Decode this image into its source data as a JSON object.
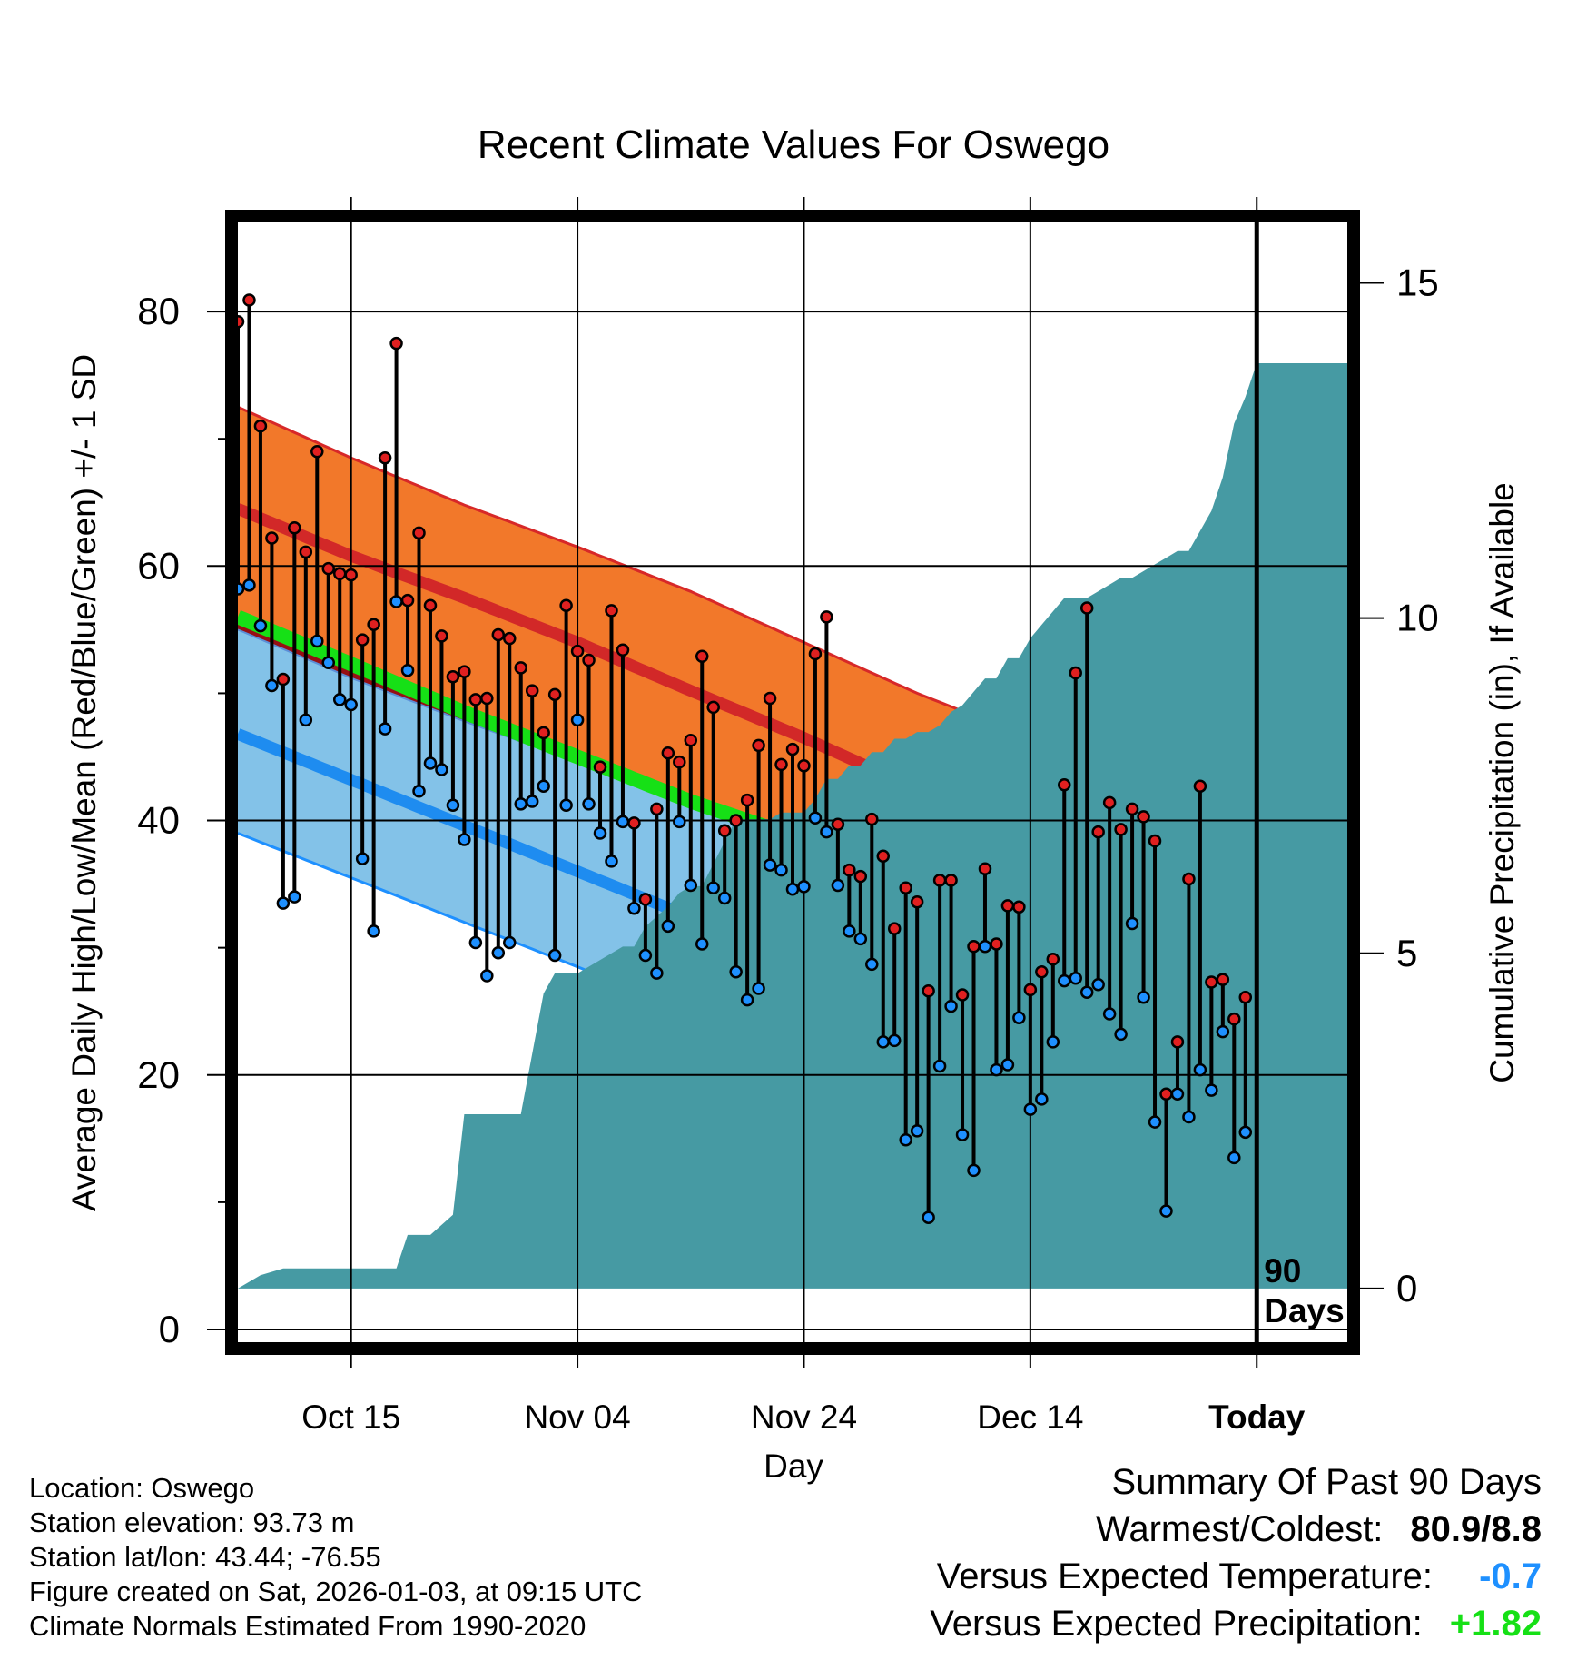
{
  "chart_data": {
    "type": "line",
    "title": "Recent Climate Values For Oswego",
    "xlabel": "Day",
    "ylabel": "Average Daily High/Low/Mean (Red/Blue/Green) +/- 1 SD",
    "y2label": "Cumulative Precipitation (in), If Available",
    "x_range_days": [
      -90,
      8
    ],
    "ylim": [
      -1,
      87
    ],
    "y2lim": [
      -0.8,
      15.9
    ],
    "yticks": [
      0,
      20,
      40,
      60,
      80
    ],
    "yticks_minor": [
      10,
      30,
      50,
      70
    ],
    "y2ticks": [
      0,
      5,
      10,
      15
    ],
    "xticks": [
      {
        "day": -80,
        "label": "Oct 15"
      },
      {
        "day": -60,
        "label": "Nov 04"
      },
      {
        "day": -40,
        "label": "Nov 24"
      },
      {
        "day": -20,
        "label": "Dec 14"
      },
      {
        "day": 0,
        "label": "Today"
      }
    ],
    "today_marker": "90\nDays",
    "normals": {
      "days": [
        -90,
        -80,
        -70,
        -60,
        -50,
        -40,
        -30,
        -20,
        -10,
        0,
        9
      ],
      "high_mean": [
        64.5,
        60.8,
        57.5,
        54.0,
        50.2,
        46.5,
        42.5,
        38.0,
        35.0,
        32.5,
        31.5
      ],
      "high_upper": [
        72.5,
        68.5,
        64.8,
        61.5,
        58.0,
        54.0,
        50.0,
        46.5,
        44.7,
        43.8,
        43.0
      ],
      "mean_mean": [
        56.0,
        52.3,
        48.5,
        45.0,
        41.5,
        38.5,
        35.0,
        31.3,
        28.0,
        25.0,
        23.8
      ],
      "low_mean": [
        46.8,
        43.2,
        39.6,
        36.0,
        32.4,
        28.8,
        25.2,
        21.6,
        18.0,
        14.5,
        13.0
      ],
      "low_lower": [
        39.0,
        35.5,
        32.0,
        28.5,
        25.0,
        21.5,
        18.0,
        14.5,
        11.0,
        7.5,
        6.0
      ],
      "high_lower_top": [
        55.0,
        51.2,
        47.8,
        44.6,
        41.4,
        38.2,
        35.0,
        32.5,
        30.5,
        29.5,
        28.7
      ]
    },
    "series": [
      {
        "name": "Daily High",
        "color": "#e02020",
        "values": [
          79.2,
          80.9,
          71.0,
          62.2,
          51.1,
          63.0,
          61.1,
          69.0,
          59.8,
          59.4,
          59.3,
          54.2,
          55.4,
          68.5,
          77.5,
          57.3,
          62.6,
          56.9,
          54.5,
          51.3,
          51.7,
          49.5,
          49.6,
          54.6,
          54.3,
          52.0,
          50.2,
          46.9,
          49.9,
          56.9,
          53.3,
          52.6,
          44.2,
          56.5,
          53.4,
          39.8,
          33.8,
          40.9,
          45.3,
          44.6,
          46.3,
          52.9,
          48.9,
          39.2,
          40.0,
          41.6,
          45.9,
          49.6,
          44.4,
          45.6,
          44.3,
          53.1,
          56.0,
          39.7,
          36.1,
          35.6,
          40.1,
          37.2,
          31.5,
          34.7,
          33.6,
          26.6,
          35.3,
          35.3,
          26.3,
          30.1,
          36.2,
          30.3,
          33.3,
          33.2,
          26.7,
          28.1,
          29.1,
          42.8,
          51.6,
          56.7,
          39.1,
          41.4,
          39.3,
          40.9,
          40.3,
          38.4,
          18.5,
          22.6,
          35.4,
          42.7,
          27.3,
          27.5,
          24.4,
          26.1
        ]
      },
      {
        "name": "Daily Low",
        "color": "#1e90ff",
        "values": [
          58.2,
          58.5,
          55.3,
          50.6,
          33.5,
          34.0,
          47.9,
          54.1,
          52.4,
          49.5,
          49.1,
          37.0,
          31.3,
          47.2,
          57.2,
          51.8,
          42.3,
          44.5,
          44.0,
          41.2,
          38.5,
          30.4,
          27.8,
          29.6,
          30.4,
          41.3,
          41.5,
          42.7,
          29.4,
          41.2,
          47.9,
          41.3,
          39.0,
          36.8,
          39.9,
          33.1,
          29.4,
          28.0,
          31.7,
          39.9,
          34.9,
          30.3,
          34.7,
          33.9,
          28.1,
          25.9,
          26.8,
          36.5,
          36.1,
          34.6,
          34.8,
          40.2,
          39.1,
          34.9,
          31.3,
          30.7,
          28.7,
          22.6,
          22.7,
          14.9,
          15.6,
          8.8,
          20.7,
          25.4,
          15.3,
          12.5,
          30.1,
          20.4,
          20.8,
          24.5,
          17.3,
          18.1,
          22.6,
          27.4,
          27.6,
          26.5,
          27.1,
          24.8,
          23.2,
          31.9,
          26.1,
          16.3,
          9.3,
          18.5,
          16.7,
          20.4,
          18.8,
          23.4,
          13.5,
          15.5
        ]
      }
    ],
    "precip_days": [
      -90,
      -88,
      -86,
      -76,
      -75,
      -73,
      -71,
      -70,
      -68,
      -65,
      -63,
      -62,
      -60,
      -59,
      -57,
      -56,
      -55,
      -54,
      -52,
      -51,
      -50,
      -49,
      -46,
      -44,
      -43,
      -42,
      -41,
      -40,
      -39,
      -38,
      -37,
      -36,
      -35,
      -34,
      -33,
      -32,
      -31,
      -30,
      -29,
      -28,
      -27,
      -26,
      -25,
      -24,
      -23,
      -22,
      -21,
      -20,
      -19,
      -18,
      -17,
      -15,
      -14,
      -13,
      -12,
      -11,
      -9,
      -8,
      -7,
      -6,
      -5,
      -4,
      -3,
      -2,
      -1,
      0,
      9
    ],
    "precip_values": [
      0.0,
      0.2,
      0.3,
      0.3,
      0.8,
      0.8,
      1.1,
      2.6,
      2.6,
      2.6,
      4.4,
      4.7,
      4.7,
      4.8,
      5.0,
      5.1,
      5.1,
      5.4,
      5.7,
      5.9,
      6.0,
      6.0,
      7.0,
      7.0,
      7.0,
      7.1,
      7.1,
      7.1,
      7.3,
      7.6,
      7.6,
      7.8,
      7.8,
      8.0,
      8.0,
      8.2,
      8.2,
      8.3,
      8.3,
      8.4,
      8.6,
      8.7,
      8.9,
      9.1,
      9.1,
      9.4,
      9.4,
      9.7,
      9.9,
      10.1,
      10.3,
      10.3,
      10.4,
      10.5,
      10.6,
      10.6,
      10.8,
      10.9,
      11.0,
      11.0,
      11.3,
      11.6,
      12.1,
      12.9,
      13.3,
      13.8,
      13.8
    ]
  },
  "colors": {
    "high_band": "#f2782a",
    "high_band_edge": "#d72828",
    "high_mean_line": "#d22828",
    "mean_band": "#960f14",
    "mean_line": "#16e016",
    "low_band": "#83c2e8",
    "low_mean_line": "#1e8cf0",
    "low_band_edge": "#1e90ff",
    "precip_fill": "#469aa3",
    "high_dot": "#e02020",
    "low_dot": "#1e90ff"
  },
  "info": {
    "location": "Location: Oswego",
    "elevation": "Station elevation: 93.73 m",
    "latlon": "Station lat/lon: 43.44; -76.55",
    "created": "Figure created on Sat, 2026-01-03, at 09:15 UTC",
    "normals": "Climate Normals Estimated From 1990-2020"
  },
  "summary": {
    "heading": "Summary Of Past 90 Days",
    "warmest_label": "Warmest/Coldest:",
    "warmest_value": "80.9/8.8",
    "temp_label": "Versus Expected Temperature:",
    "temp_value": "-0.7",
    "temp_color": "#1e90ff",
    "precip_label": "Versus Expected Precipitation:",
    "precip_value": "+1.82",
    "precip_color": "#16e016"
  }
}
